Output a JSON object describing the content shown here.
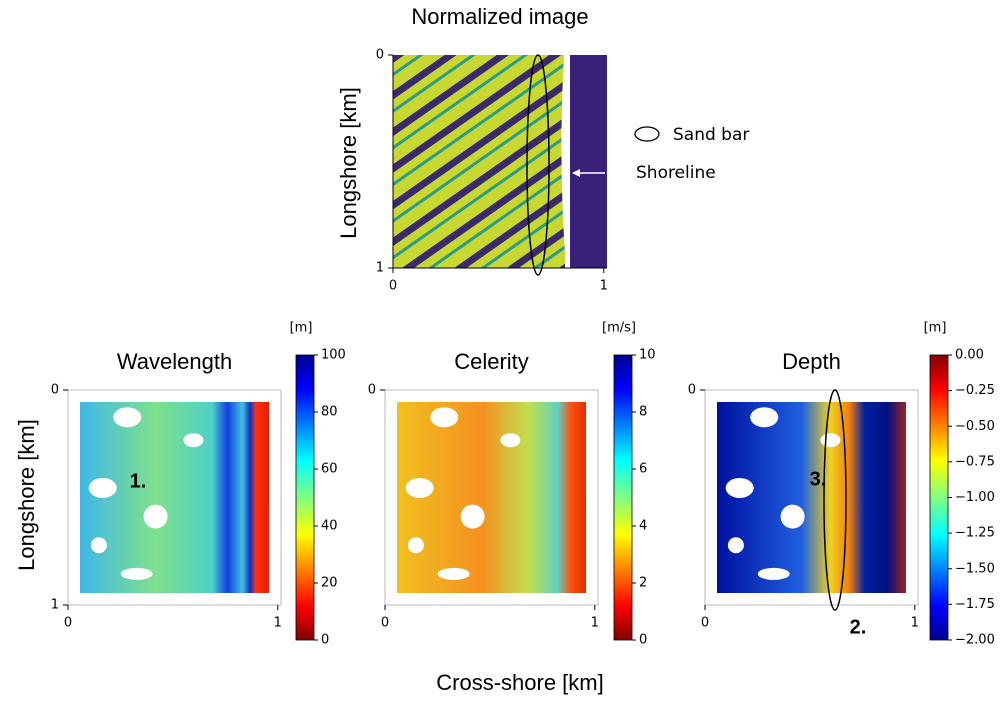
{
  "top_panel": {
    "title": "Normalized image",
    "y_label": "Longshore [km]",
    "xlim": [
      0,
      1
    ],
    "ylim": [
      0,
      1
    ],
    "xticks": [
      0,
      1
    ],
    "yticks": [
      0,
      1
    ],
    "legend": {
      "sand_bar": "Sand bar",
      "shoreline": "Shoreline"
    }
  },
  "chart_data": [
    {
      "type": "heatmap",
      "title": "Wavelength",
      "unit": "[m]",
      "clim": [
        0,
        100
      ],
      "colorbar_ticks": [
        0,
        20,
        40,
        60,
        80,
        100
      ],
      "xlim": [
        0,
        1
      ],
      "ylim": [
        0,
        1
      ],
      "xticks": [
        0,
        1
      ],
      "yticks": [
        0,
        1
      ],
      "annotations": [
        "1."
      ]
    },
    {
      "type": "heatmap",
      "title": "Celerity",
      "unit": "[m/s]",
      "clim": [
        0,
        10
      ],
      "colorbar_ticks": [
        0,
        2,
        4,
        6,
        8,
        10
      ],
      "xlim": [
        0,
        1
      ],
      "ylim": [
        0,
        1
      ],
      "xticks": [
        0,
        1
      ],
      "yticks": [
        0
      ],
      "annotations": []
    },
    {
      "type": "heatmap",
      "title": "Depth",
      "unit": "[m]",
      "clim": [
        -2,
        0
      ],
      "colorbar_ticks": [
        {
          "value": 0,
          "label": "0.00"
        },
        {
          "value": -0.25,
          "label": "−0.25"
        },
        {
          "value": -0.5,
          "label": "−0.50"
        },
        {
          "value": -0.75,
          "label": "−0.75"
        },
        {
          "value": -1,
          "label": "−1.00"
        },
        {
          "value": -1.25,
          "label": "−1.25"
        },
        {
          "value": -1.5,
          "label": "−1.50"
        },
        {
          "value": -1.75,
          "label": "−1.75"
        },
        {
          "value": -2,
          "label": "−2.00"
        }
      ],
      "xlim": [
        0,
        1
      ],
      "ylim": [
        0,
        1
      ],
      "xticks": [
        0,
        1
      ],
      "yticks": [
        0
      ],
      "annotations": [
        "3.",
        "2."
      ]
    }
  ],
  "y_label": "Longshore [km]",
  "x_label": "Cross-shore [km]"
}
